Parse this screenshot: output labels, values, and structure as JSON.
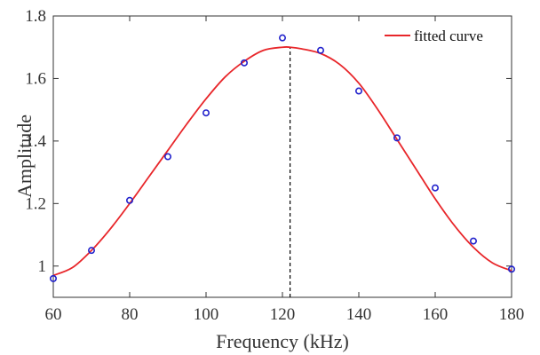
{
  "chart_data": {
    "type": "scatter",
    "xlabel": "Frequency (kHz)",
    "ylabel": "Amplitude",
    "xlim": [
      60,
      180
    ],
    "ylim": [
      0.9,
      1.8
    ],
    "xticks": [
      60,
      80,
      100,
      120,
      140,
      160,
      180
    ],
    "yticks": [
      1,
      1.2,
      1.4,
      1.6,
      1.8
    ],
    "ytick_labels": [
      "1",
      "1.2",
      "1.4",
      "1.6",
      "1.8"
    ],
    "grid": false,
    "legend_position": "top-right",
    "series": [
      {
        "type": "scatter",
        "marker": "circle-open",
        "color": "#2222cc",
        "x": [
          60,
          70,
          80,
          90,
          100,
          110,
          120,
          130,
          140,
          150,
          160,
          170,
          180
        ],
        "y": [
          0.96,
          1.05,
          1.21,
          1.35,
          1.49,
          1.65,
          1.73,
          1.69,
          1.56,
          1.41,
          1.25,
          1.08,
          0.99
        ]
      },
      {
        "name": "fitted curve",
        "type": "line",
        "color": "#e8262a",
        "x": [
          60,
          65,
          70,
          75,
          80,
          85,
          90,
          95,
          100,
          105,
          110,
          115,
          120,
          122,
          125,
          130,
          135,
          140,
          145,
          150,
          155,
          160,
          165,
          170,
          175,
          180
        ],
        "y": [
          0.97,
          0.995,
          1.05,
          1.12,
          1.2,
          1.285,
          1.37,
          1.455,
          1.535,
          1.605,
          1.655,
          1.69,
          1.7,
          1.7,
          1.695,
          1.68,
          1.645,
          1.585,
          1.5,
          1.405,
          1.31,
          1.215,
          1.13,
          1.06,
          1.01,
          0.985
        ]
      }
    ],
    "annotations": [
      {
        "type": "vline",
        "x": 122,
        "y_from": 0.9,
        "y_to": 1.7,
        "style": "dashed",
        "color": "#000000"
      }
    ]
  }
}
